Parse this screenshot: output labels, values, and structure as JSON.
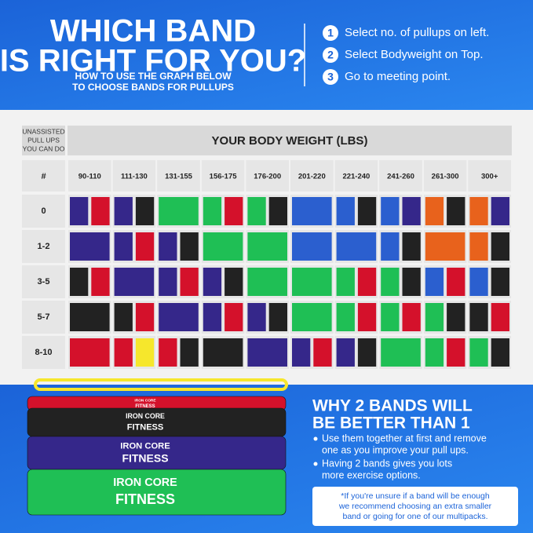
{
  "header": {
    "title": [
      "WHICH BAND",
      "IS RIGHT FOR YOU?"
    ],
    "subtitle": [
      "HOW TO USE THE GRAPH BELOW",
      "TO CHOOSE BANDS FOR PULLUPS"
    ],
    "steps": [
      {
        "number": "1",
        "text": "Select no. of pullups on left."
      },
      {
        "number": "2",
        "text": "Select Bodyweight on Top."
      },
      {
        "number": "3",
        "text": "Go to meeting point."
      }
    ]
  },
  "table": {
    "corner": [
      "UNASSISTED",
      "PULL UPS",
      "YOU CAN DO"
    ],
    "weight_heading": "YOUR BODY WEIGHT (LBS)",
    "hash": "#",
    "columns": [
      "90-110",
      "111-130",
      "131-155",
      "156-175",
      "176-200",
      "201-220",
      "221-240",
      "241-260",
      "261-300",
      "300+"
    ],
    "rows": [
      {
        "label": "0",
        "cells": [
          [
            "purple",
            "red"
          ],
          [
            "purple",
            "black"
          ],
          [
            "green"
          ],
          [
            "green",
            "red"
          ],
          [
            "green",
            "black"
          ],
          [
            "blue"
          ],
          [
            "blue",
            "black"
          ],
          [
            "blue",
            "purple"
          ],
          [
            "orange",
            "black"
          ],
          [
            "orange",
            "purple"
          ]
        ]
      },
      {
        "label": "1-2",
        "cells": [
          [
            "purple"
          ],
          [
            "purple",
            "red"
          ],
          [
            "purple",
            "black"
          ],
          [
            "green"
          ],
          [
            "green"
          ],
          [
            "blue"
          ],
          [
            "blue"
          ],
          [
            "blue",
            "black"
          ],
          [
            "orange"
          ],
          [
            "orange",
            "black"
          ]
        ]
      },
      {
        "label": "3-5",
        "cells": [
          [
            "black",
            "red"
          ],
          [
            "purple"
          ],
          [
            "purple",
            "red"
          ],
          [
            "purple",
            "black"
          ],
          [
            "green"
          ],
          [
            "green"
          ],
          [
            "green",
            "red"
          ],
          [
            "green",
            "black"
          ],
          [
            "blue",
            "red"
          ],
          [
            "blue",
            "black"
          ]
        ]
      },
      {
        "label": "5-7",
        "cells": [
          [
            "black"
          ],
          [
            "black",
            "red"
          ],
          [
            "purple"
          ],
          [
            "purple",
            "red"
          ],
          [
            "purple",
            "black"
          ],
          [
            "green"
          ],
          [
            "green",
            "red"
          ],
          [
            "green",
            "red"
          ],
          [
            "green",
            "black"
          ],
          [
            "black",
            "red"
          ]
        ]
      },
      {
        "label": "8-10",
        "cells": [
          [
            "red"
          ],
          [
            "red",
            "yellow"
          ],
          [
            "red",
            "black"
          ],
          [
            "black"
          ],
          [
            "purple"
          ],
          [
            "purple",
            "red"
          ],
          [
            "purple",
            "black"
          ],
          [
            "green"
          ],
          [
            "green",
            "red"
          ],
          [
            "green",
            "black"
          ]
        ]
      }
    ]
  },
  "band_colors": {
    "purple": "#35278a",
    "red": "#d4112b",
    "black": "#222222",
    "green": "#1fbf55",
    "blue": "#2b5fcf",
    "orange": "#e8621c",
    "yellow": "#f6e72c"
  },
  "bands_image": [
    {
      "color": "red",
      "brand": "IRON CORE",
      "name": "FITNESS"
    },
    {
      "color": "black",
      "brand": "IRON CORE",
      "name": "FITNESS"
    },
    {
      "color": "purple",
      "brand": "IRON CORE",
      "name": "FITNESS"
    },
    {
      "color": "green",
      "brand": "IRON CORE",
      "name": "FITNESS"
    }
  ],
  "benefits": {
    "title": [
      "WHY 2 BANDS WILL",
      "BE BETTER THAN 1"
    ],
    "bullets": [
      [
        "Use them together at first and remove",
        "one as you improve your pull ups."
      ],
      [
        "Having 2 bands gives you lots",
        "more exercise options."
      ]
    ],
    "note": [
      "*If you're unsure if a band will be enough",
      "we recommend choosing an extra smaller",
      "band or going for one of our multipacks."
    ]
  }
}
